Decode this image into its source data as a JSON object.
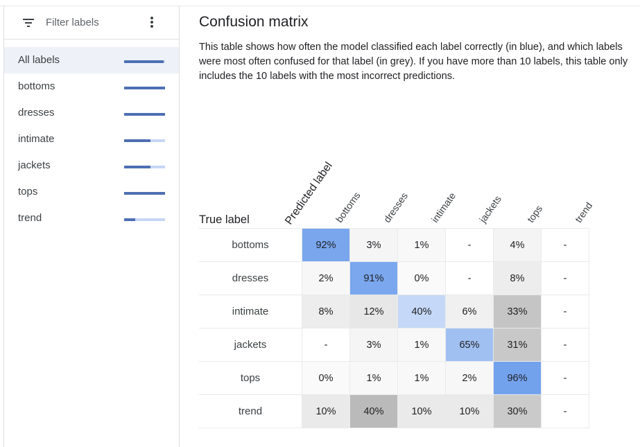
{
  "filter": {
    "placeholder": "Filter labels",
    "filter_icon": "filter-list-icon",
    "more_icon": "more-vert-icon"
  },
  "labels": [
    {
      "name": "All labels",
      "score": 0.97,
      "selected": true
    },
    {
      "name": "bottoms",
      "score": 1.0,
      "selected": false
    },
    {
      "name": "dresses",
      "score": 1.0,
      "selected": false
    },
    {
      "name": "intimate",
      "score": 0.65,
      "selected": false
    },
    {
      "name": "jackets",
      "score": 0.65,
      "selected": false
    },
    {
      "name": "tops",
      "score": 1.0,
      "selected": false
    },
    {
      "name": "trend",
      "score": 0.27,
      "selected": false
    }
  ],
  "matrix": {
    "title": "Confusion matrix",
    "description": "This table shows how often the model classified each label correctly (in blue), and which labels were most often confused for that label (in grey). If you have more than 10 labels, this table only includes the 10 labels with the most incorrect predictions.",
    "true_label": "True label",
    "predicted_label": "Predicted label",
    "columns": [
      "bottoms",
      "dresses",
      "intimate",
      "jackets",
      "tops",
      "trend"
    ],
    "rows": [
      {
        "label": "bottoms",
        "cells": [
          "92%",
          "3%",
          "1%",
          "-",
          "4%",
          "-"
        ]
      },
      {
        "label": "dresses",
        "cells": [
          "2%",
          "91%",
          "0%",
          "-",
          "8%",
          "-"
        ]
      },
      {
        "label": "intimate",
        "cells": [
          "8%",
          "12%",
          "40%",
          "6%",
          "33%",
          "-"
        ]
      },
      {
        "label": "jackets",
        "cells": [
          "-",
          "3%",
          "1%",
          "65%",
          "31%",
          "-"
        ]
      },
      {
        "label": "tops",
        "cells": [
          "0%",
          "1%",
          "1%",
          "2%",
          "96%",
          "-"
        ]
      },
      {
        "label": "trend",
        "cells": [
          "10%",
          "40%",
          "10%",
          "10%",
          "30%",
          "-"
        ]
      }
    ],
    "colors": {
      "correct": "#6d9eeb",
      "confused": "#9e9e9e"
    }
  }
}
